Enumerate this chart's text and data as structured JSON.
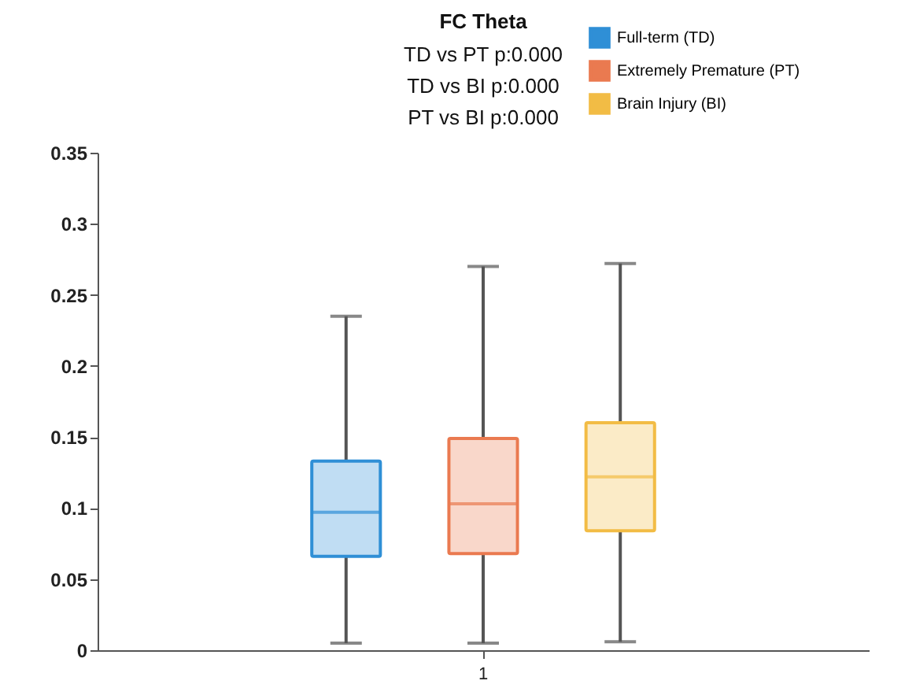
{
  "chart_data": {
    "type": "box",
    "title": "FC Theta",
    "annotations": [
      "TD vs PT p:0.000",
      "TD vs BI p:0.000",
      "PT vs BI p:0.000"
    ],
    "categories": [
      "1"
    ],
    "series": [
      {
        "name": "Full-term (TD)",
        "color": "#2f8fd6",
        "boxes": [
          {
            "low": 0.005,
            "q1": 0.066,
            "median": 0.097,
            "q3": 0.133,
            "high": 0.235
          }
        ]
      },
      {
        "name": "Extremely Premature (PT)",
        "color": "#ea7a50",
        "boxes": [
          {
            "low": 0.005,
            "q1": 0.068,
            "median": 0.103,
            "q3": 0.149,
            "high": 0.27
          }
        ]
      },
      {
        "name": "Brain Injury (BI)",
        "color": "#f2bc45",
        "boxes": [
          {
            "low": 0.006,
            "q1": 0.084,
            "median": 0.122,
            "q3": 0.16,
            "high": 0.272
          }
        ]
      }
    ],
    "ylim": [
      0,
      0.35
    ],
    "yticks": [
      0,
      0.05,
      0.1,
      0.15,
      0.2,
      0.25,
      0.3,
      0.35
    ],
    "grid": false,
    "legend": "top right"
  }
}
